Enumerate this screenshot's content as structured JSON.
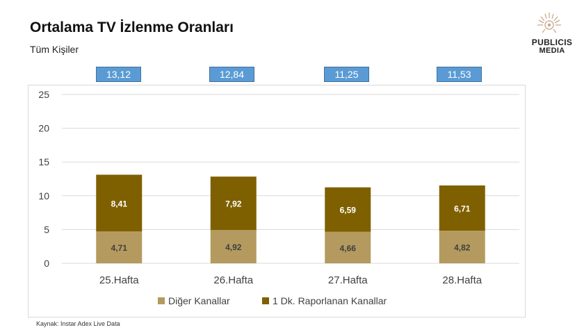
{
  "header": {
    "title": "Ortalama TV İzlenme Oranları",
    "subtitle": "Tüm Kişiler"
  },
  "logo": {
    "line1": "PUBLICIS",
    "line2": "MEDIA",
    "icon": "sun-icon"
  },
  "totals": [
    "13,12",
    "12,84",
    "11,25",
    "11,53"
  ],
  "source": "Kaynak: Instar  Adex Live Data",
  "colors": {
    "diger": "#b49a5e",
    "raporlanan": "#7f6000",
    "total_box": "#5b9bd5",
    "grid": "#d9d9d9"
  },
  "chart_data": {
    "type": "bar",
    "stacked": true,
    "categories": [
      "25.Hafta",
      "26.Hafta",
      "27.Hafta",
      "28.Hafta"
    ],
    "series": [
      {
        "name": "Diğer Kanallar",
        "values": [
          4.71,
          4.92,
          4.66,
          4.82
        ],
        "labels": [
          "4,71",
          "4,92",
          "4,66",
          "4,82"
        ]
      },
      {
        "name": "1 Dk. Raporlanan Kanallar",
        "values": [
          8.41,
          7.92,
          6.59,
          6.71
        ],
        "labels": [
          "8,41",
          "7,92",
          "6,59",
          "6,71"
        ]
      }
    ],
    "ylim": [
      0,
      25
    ],
    "yticks": [
      "0",
      "5",
      "10",
      "15",
      "20",
      "25"
    ],
    "grid": true,
    "legend_position": "bottom"
  }
}
